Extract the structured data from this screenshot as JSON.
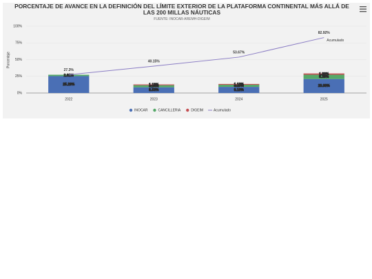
{
  "chart_data": {
    "type": "bar",
    "stacked": true,
    "title": "PORCENTAJE DE AVANCE EN LA DEFINICIÓN DEL LÍMITE EXTERIOR DE LA PLATAFORMA CONTINENTAL MÁS ALLÁ DE LAS 200 MILLAS NÁUTICAS",
    "subtitle": "FUENTE: INOCAR-AREMH-DIGEIM",
    "y_label": "Porcentaje",
    "categories": [
      "2022",
      "2023",
      "2024",
      "2025"
    ],
    "series": [
      {
        "name": "INOCAR",
        "color": "#4a6fb5",
        "values": [
          25.29,
          8.53,
          9.18,
          20.98
        ],
        "value_labels": [
          "25.29%",
          "8.53%",
          "9.18%",
          "20.98%"
        ]
      },
      {
        "name": "CANCILLERIA",
        "color": "#55a868",
        "values": [
          2.01,
          3.14,
          3.16,
          6.39
        ],
        "value_labels": [
          "2.01%",
          "3.14%",
          "3.16%",
          "6.39%"
        ]
      },
      {
        "name": "DIGEIM",
        "color": "#c44e52",
        "values": [
          0,
          1.18,
          1.18,
          1.88
        ],
        "value_labels": [
          null,
          "1.18%",
          "1.18%",
          "1.88%"
        ]
      },
      {
        "name": "Acumulado",
        "type": "line",
        "color": "#8a7cc4",
        "values": [
          27.3,
          40.15,
          53.67,
          82.92
        ],
        "value_labels": [
          "27.3%",
          "40.15%",
          "53.67%",
          "82.92%"
        ]
      }
    ],
    "ylim": [
      0,
      100
    ],
    "yticks": [
      {
        "value": 0,
        "label": "0%"
      },
      {
        "value": 25,
        "label": "25%"
      },
      {
        "value": 50,
        "label": "50%"
      },
      {
        "value": 75,
        "label": "75%"
      },
      {
        "value": 100,
        "label": "100%"
      }
    ],
    "grid": true,
    "legend": "bottom"
  }
}
